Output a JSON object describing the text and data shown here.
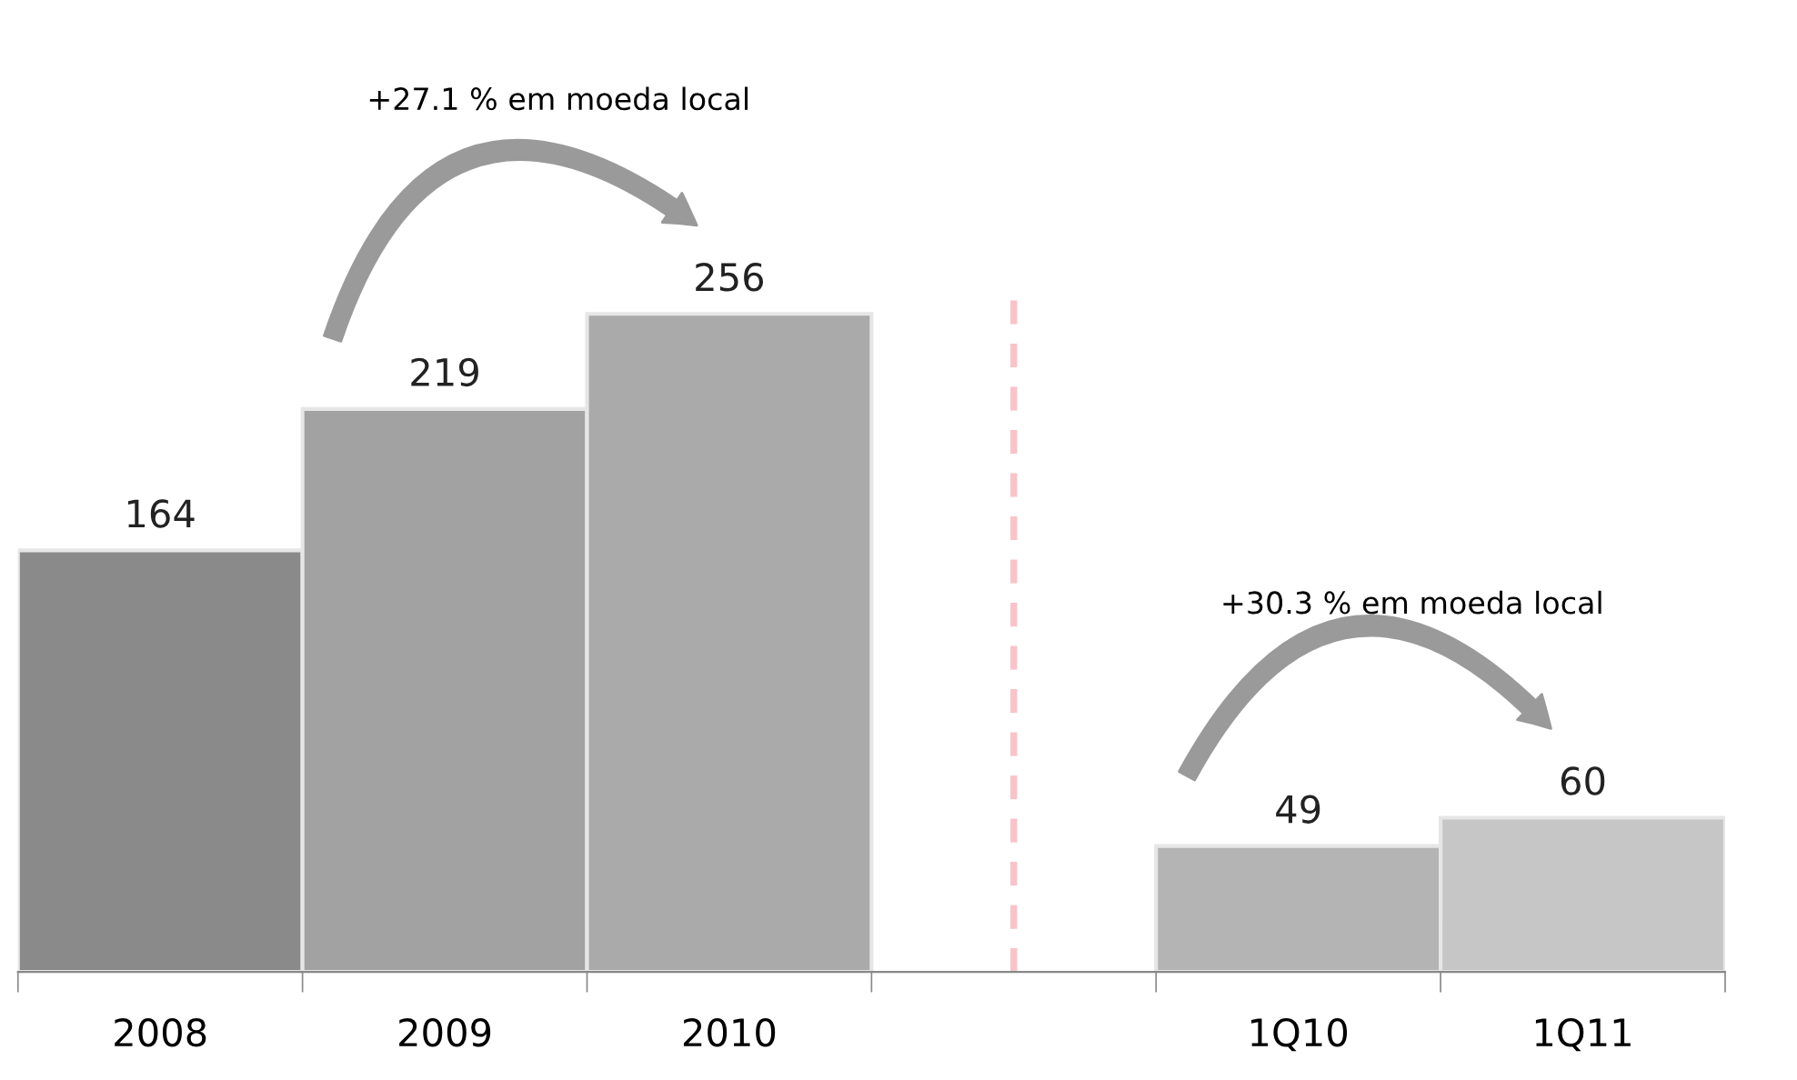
{
  "chart_data": {
    "type": "bar",
    "categories": [
      "2008",
      "2009",
      "2010",
      null,
      "1Q10",
      "1Q11"
    ],
    "values": [
      164,
      219,
      256,
      null,
      49,
      60
    ],
    "colors": [
      "#8a8a8a",
      "#a2a2a2",
      "#aaaaaa",
      "#b0b0b0",
      "#b4b4b4",
      "#c6c6c6"
    ],
    "data_labels": true,
    "grid": false,
    "legend": false,
    "annotations": [
      "+27.1 % em moeda local",
      "+30.3 % em moeda local"
    ]
  }
}
